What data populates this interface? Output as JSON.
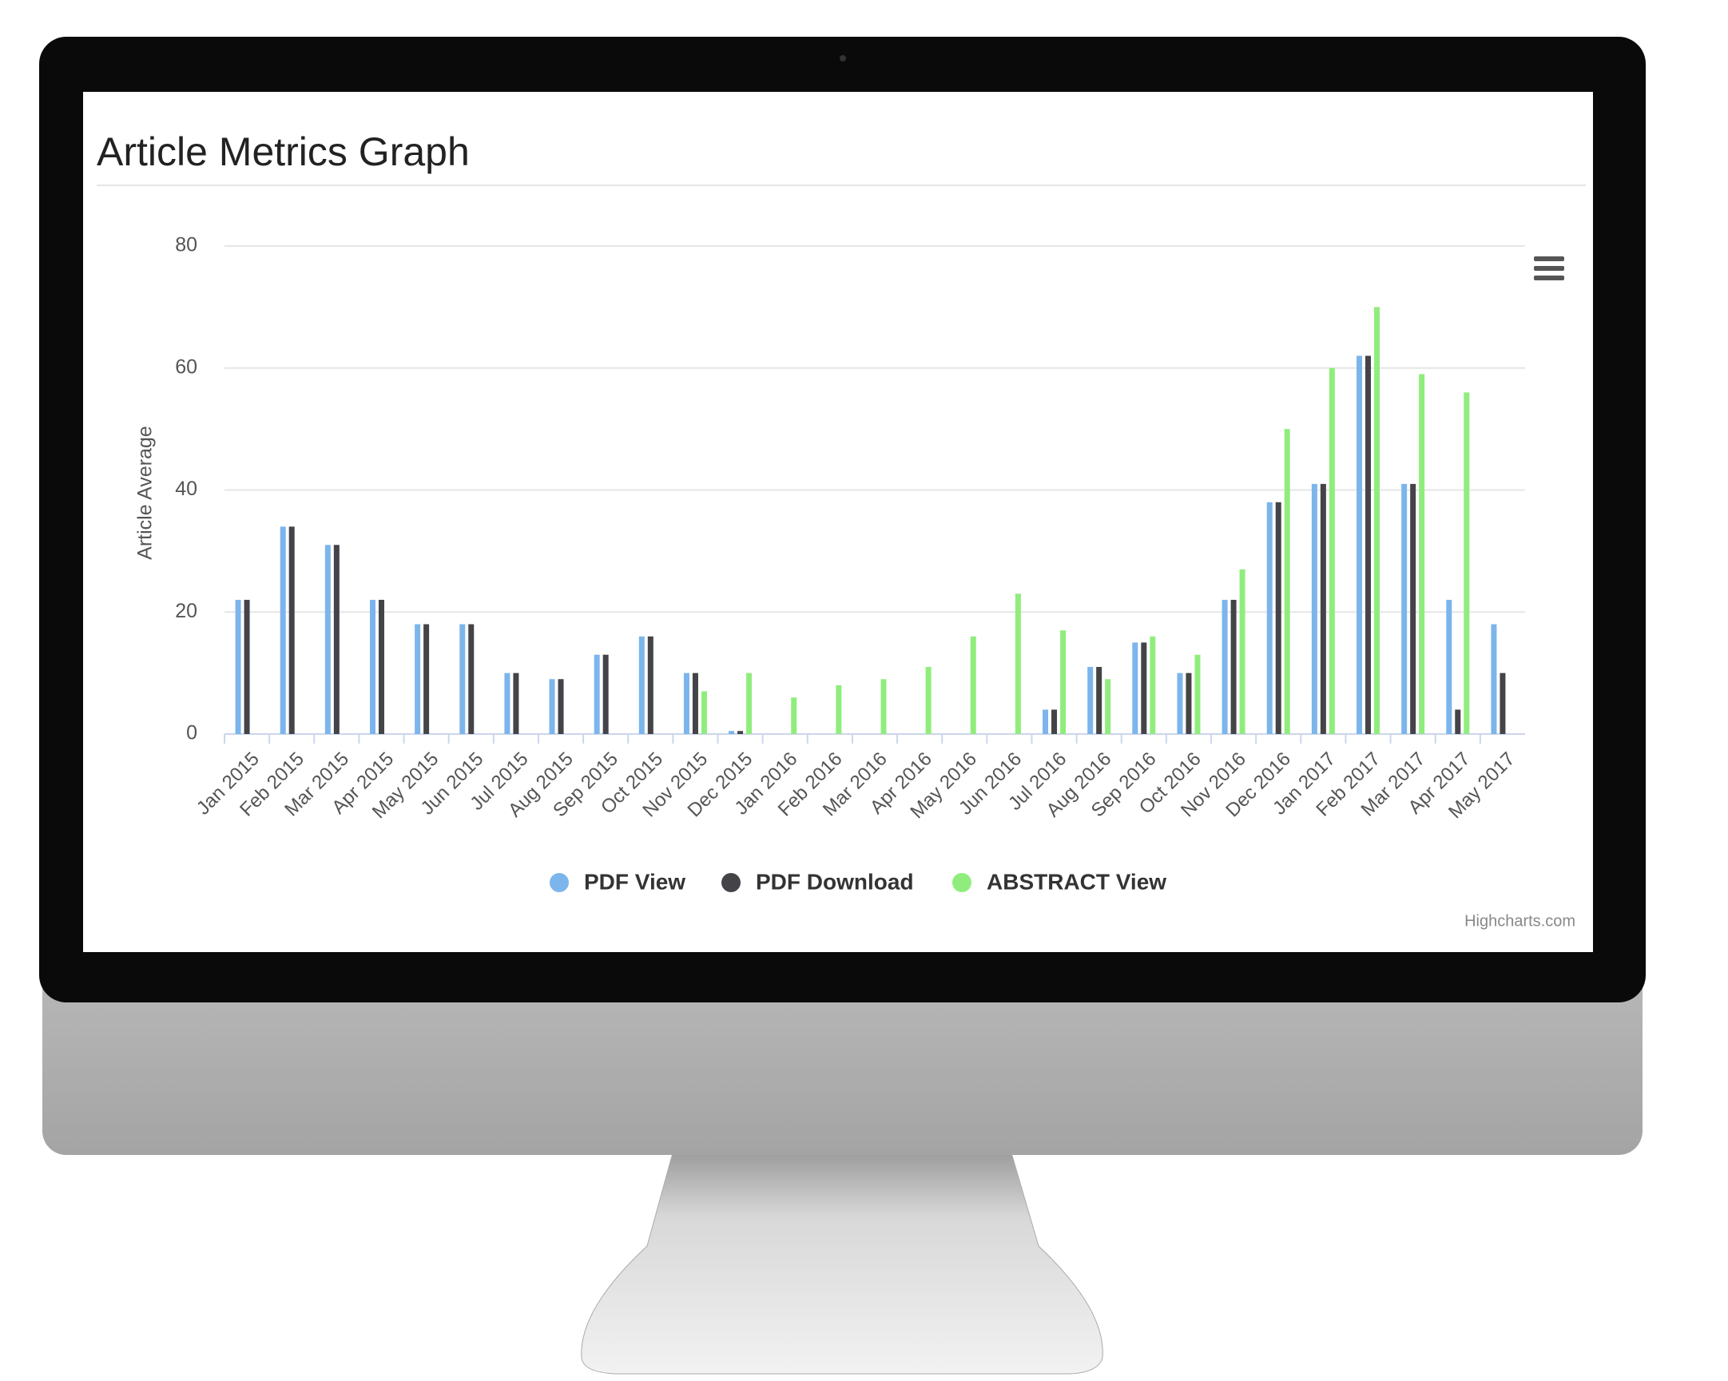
{
  "chart_data": {
    "type": "bar",
    "title": "Article Metrics Graph",
    "y_label": "Article Average",
    "credits": "Highcharts.com",
    "categories": [
      "Jan 2015",
      "Feb 2015",
      "Mar 2015",
      "Apr 2015",
      "May 2015",
      "Jun 2015",
      "Jul 2015",
      "Aug 2015",
      "Sep 2015",
      "Oct 2015",
      "Nov 2015",
      "Dec 2015",
      "Jan 2016",
      "Feb 2016",
      "Mar 2016",
      "Apr 2016",
      "May 2016",
      "Jun 2016",
      "Jul 2016",
      "Aug 2016",
      "Sep 2016",
      "Oct 2016",
      "Nov 2016",
      "Dec 2016",
      "Jan 2017",
      "Feb 2017",
      "Mar 2017",
      "Apr 2017",
      "May 2017"
    ],
    "series": [
      {
        "name": "PDF View",
        "color": "#7cb5ec",
        "values": [
          22,
          34,
          31,
          22,
          18,
          18,
          10,
          9,
          13,
          16,
          10,
          0.5,
          0,
          0,
          0,
          0,
          0,
          0,
          4,
          11,
          15,
          10,
          22,
          38,
          41,
          62,
          41,
          22,
          18
        ]
      },
      {
        "name": "PDF Download",
        "color": "#434348",
        "values": [
          22,
          34,
          31,
          22,
          18,
          18,
          10,
          9,
          13,
          16,
          10,
          0.5,
          0,
          0,
          0,
          0,
          0,
          0,
          4,
          11,
          15,
          10,
          22,
          38,
          41,
          62,
          41,
          4,
          10
        ]
      },
      {
        "name": "ABSTRACT View",
        "color": "#90ed7d",
        "values": [
          0,
          0,
          0,
          0,
          0,
          0,
          0,
          0,
          0,
          0,
          7,
          10,
          6,
          8,
          9,
          11,
          16,
          23,
          17,
          9,
          16,
          13,
          27,
          50,
          60,
          70,
          59,
          56,
          0
        ]
      }
    ],
    "ylim": [
      0,
      80
    ],
    "yticks": [
      0,
      20,
      40,
      60,
      80
    ],
    "grid": true
  }
}
